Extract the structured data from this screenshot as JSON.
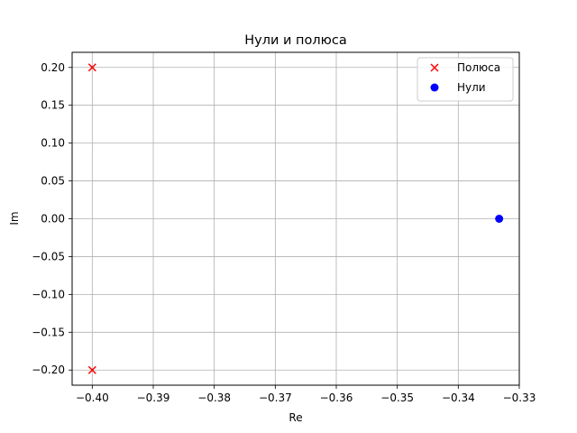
{
  "chart_data": {
    "type": "scatter",
    "title": "Нули и полюса",
    "xlabel": "Re",
    "ylabel": "Im",
    "xlim": [
      -0.4033,
      -0.33
    ],
    "ylim": [
      -0.22,
      0.22
    ],
    "x_ticks": [
      -0.4,
      -0.39,
      -0.38,
      -0.37,
      -0.36,
      -0.35,
      -0.34,
      -0.33
    ],
    "x_tick_labels": [
      "−0.40",
      "−0.39",
      "−0.38",
      "−0.37",
      "−0.36",
      "−0.35",
      "−0.34",
      "−0.33"
    ],
    "y_ticks": [
      0.2,
      0.15,
      0.1,
      0.05,
      0.0,
      -0.05,
      -0.1,
      -0.15,
      -0.2
    ],
    "y_tick_labels": [
      "0.20",
      "0.15",
      "0.10",
      "0.05",
      "0.00",
      "−0.05",
      "−0.10",
      "−0.15",
      "−0.20"
    ],
    "grid": true,
    "legend_position": "top-right",
    "series": [
      {
        "name": "Полюса",
        "marker": "x",
        "color": "#ff0000",
        "points": [
          [
            -0.4,
            0.2
          ],
          [
            -0.4,
            -0.2
          ]
        ]
      },
      {
        "name": "Нули",
        "marker": "o",
        "color": "#0000ff",
        "points": [
          [
            -0.3333,
            0.0
          ]
        ]
      }
    ]
  }
}
